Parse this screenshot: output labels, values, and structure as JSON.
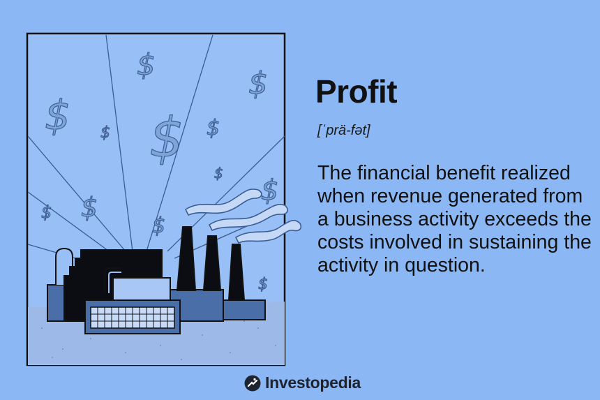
{
  "term": "Profit",
  "pronunciation": "[ˈprä-fət]",
  "definition": "The financial benefit realized when revenue generated from a business activity exceeds the costs involved in sustaining the activity in question.",
  "brand": {
    "name": "Investopedia",
    "icon": "investopedia-logo-icon"
  },
  "illustration": {
    "subject": "factory-with-smokestacks-and-dollar-signs",
    "symbol": "$"
  },
  "colors": {
    "background": "#8bb8f5",
    "frame_fill": "#98c0f7",
    "factory_blue": "#4a6ea8",
    "factory_black": "#0b0d12",
    "ground": "#9cb9e8"
  }
}
